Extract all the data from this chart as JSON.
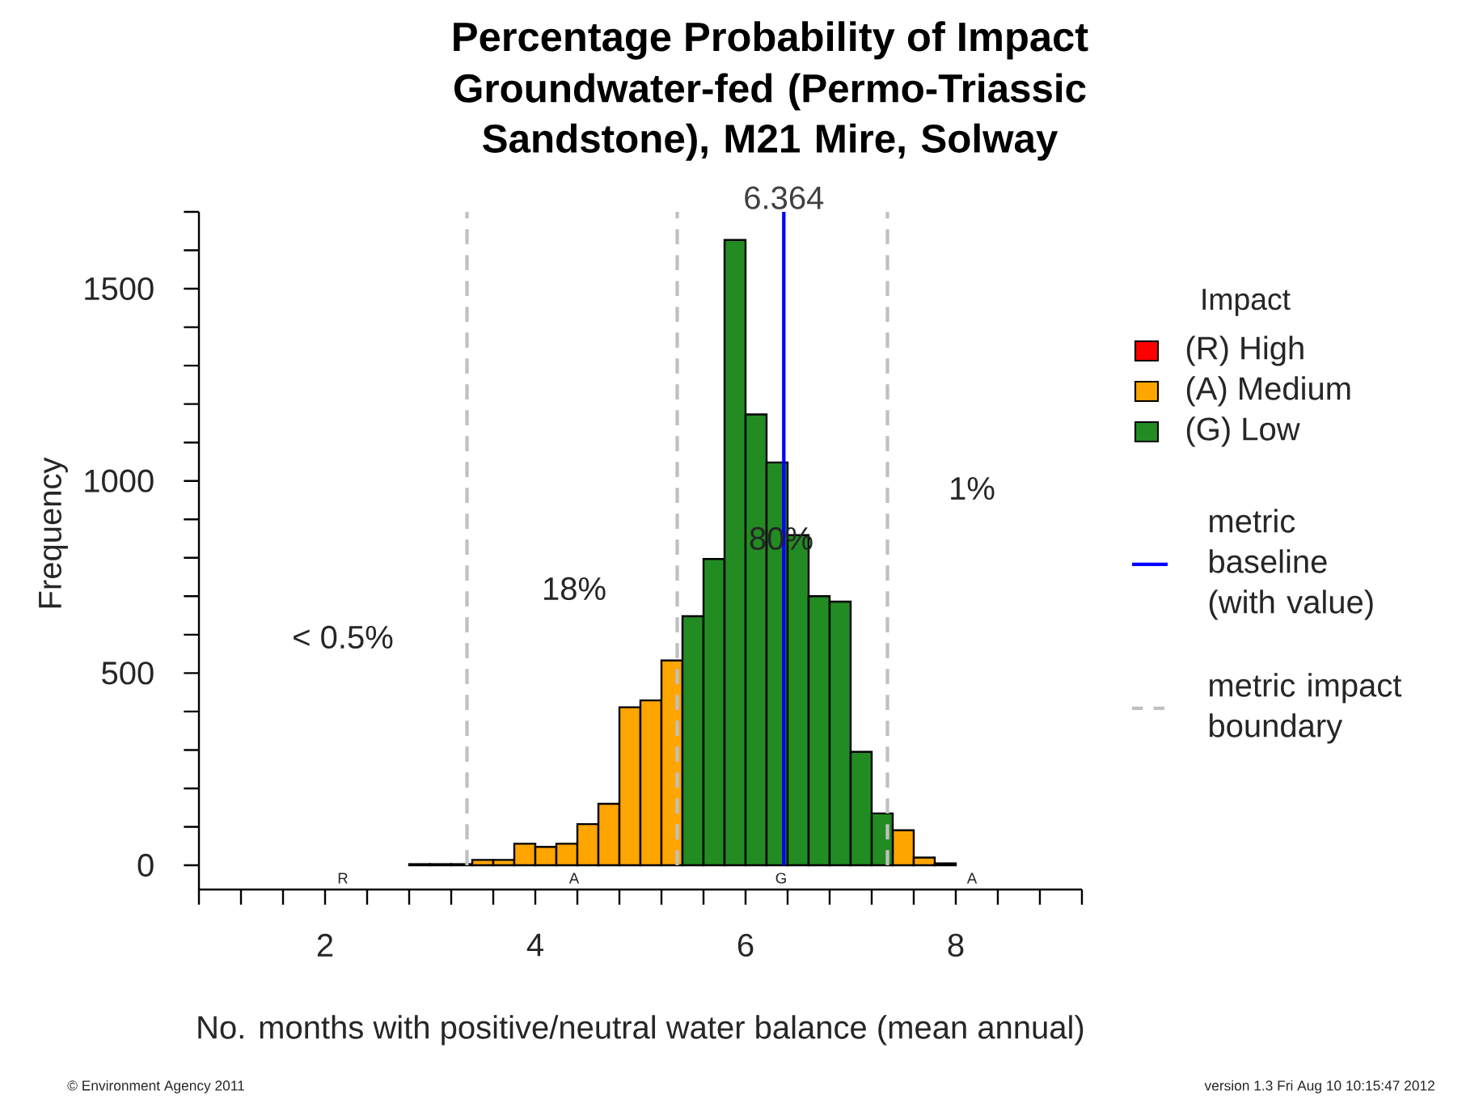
{
  "chart_data": {
    "type": "histogram",
    "title": "Percentage Probability of Impact",
    "subtitle": "Groundwater-fed (Permo-Triassic Sandstone), M21 Mire, Solway",
    "xlabel": "No. months with positive/neutral water balance (mean annual)",
    "ylabel": "Frequency",
    "legend_title": "Impact",
    "legend": "right",
    "bins": [
      1.0,
      1.2,
      1.4,
      1.6,
      1.8,
      2.0,
      2.2,
      2.4,
      2.6,
      2.8,
      3.0,
      3.2,
      3.4,
      3.6,
      3.8,
      4.0,
      4.2,
      4.4,
      4.6,
      4.8,
      5.0,
      5.2,
      5.4,
      5.6,
      5.8,
      6.0,
      6.2,
      6.4,
      6.6,
      6.8,
      7.0,
      7.2,
      7.4,
      7.6,
      7.8,
      8.0,
      8.2,
      8.4,
      8.6,
      8.8,
      9.0
    ],
    "series": [
      {
        "name": "(R)   High",
        "color": "#ff0000",
        "values": [
          null,
          null,
          null,
          null,
          null,
          null,
          null,
          null,
          null,
          3,
          3,
          3,
          null,
          null,
          null,
          null,
          null,
          null,
          null,
          null,
          null,
          null,
          null,
          null,
          null,
          null,
          null,
          null,
          null,
          null,
          null,
          null,
          null,
          null,
          null,
          null,
          null,
          null,
          null,
          null
        ]
      },
      {
        "name": "(A)   Medium",
        "color": "#ffa500",
        "values": [
          null,
          null,
          null,
          null,
          null,
          null,
          null,
          null,
          null,
          null,
          null,
          null,
          14,
          14,
          56,
          48,
          56,
          107,
          160,
          411,
          429,
          533,
          null,
          null,
          null,
          null,
          null,
          null,
          null,
          null,
          null,
          null,
          91,
          20,
          5,
          null,
          null,
          null,
          null,
          null
        ]
      },
      {
        "name": "(G)   Low",
        "color": "#228b22",
        "values": [
          null,
          null,
          null,
          null,
          null,
          null,
          null,
          null,
          null,
          null,
          null,
          null,
          null,
          null,
          null,
          null,
          null,
          null,
          null,
          null,
          null,
          null,
          648,
          797,
          1627,
          1173,
          1048,
          859,
          700,
          686,
          295,
          135,
          null,
          null,
          null,
          null,
          null,
          null,
          null,
          null
        ]
      }
    ],
    "xlim": [
      0.8,
      9.2
    ],
    "ylim": [
      -63,
      1700
    ],
    "xticks": [
      {
        "value": 0.8,
        "label": null
      },
      {
        "value": 1.2,
        "label": null
      },
      {
        "value": 1.6,
        "label": null
      },
      2,
      {
        "value": 2.4,
        "label": null
      },
      {
        "value": 2.8,
        "label": null
      },
      {
        "value": 3.2,
        "label": null
      },
      {
        "value": 3.6,
        "label": null
      },
      4,
      {
        "value": 4.4,
        "label": null
      },
      {
        "value": 4.8,
        "label": null
      },
      {
        "value": 5.2,
        "label": null
      },
      {
        "value": 5.6,
        "label": null
      },
      6,
      {
        "value": 6.4,
        "label": null
      },
      {
        "value": 6.8,
        "label": null
      },
      {
        "value": 7.2,
        "label": null
      },
      {
        "value": 7.6,
        "label": null
      },
      8,
      {
        "value": 8.4,
        "label": null
      },
      {
        "value": 8.8,
        "label": null
      },
      {
        "value": 9.2,
        "label": null
      }
    ],
    "yticks": [
      0,
      {
        "value": 100,
        "label": null
      },
      {
        "value": 200,
        "label": null
      },
      {
        "value": 300,
        "label": null
      },
      {
        "value": 400,
        "label": null
      },
      500,
      {
        "value": 600,
        "label": null
      },
      {
        "value": 700,
        "label": null
      },
      {
        "value": 800,
        "label": null
      },
      {
        "value": 900,
        "label": null
      },
      1000,
      {
        "value": 1100,
        "label": null
      },
      {
        "value": 1200,
        "label": null
      },
      {
        "value": 1300,
        "label": null
      },
      {
        "value": 1400,
        "label": null
      },
      1500,
      {
        "value": 1600,
        "label": null
      },
      {
        "value": 1700,
        "label": null
      }
    ],
    "ref_lines": [
      {
        "axis": "x",
        "value": 6.364,
        "label": "6.364",
        "color": "#0000ff",
        "line_style": "solid"
      },
      {
        "axis": "x",
        "value": 3.35,
        "color": "#c0c0c0",
        "line_style": "dashed"
      },
      {
        "axis": "x",
        "value": 5.35,
        "color": "#c0c0c0",
        "line_style": "dashed"
      },
      {
        "axis": "x",
        "value": 7.35,
        "color": "#c0c0c0",
        "line_style": "dashed"
      }
    ],
    "annotations": [
      "metric baseline (with value)",
      "metric impact boundary",
      "© Environment Agency 2011",
      "version 1.3   Fri Aug 10 10:15:47 2012",
      "< 0.5%",
      "18%",
      "80%",
      "1%",
      "R",
      "A",
      "G",
      "A"
    ]
  }
}
